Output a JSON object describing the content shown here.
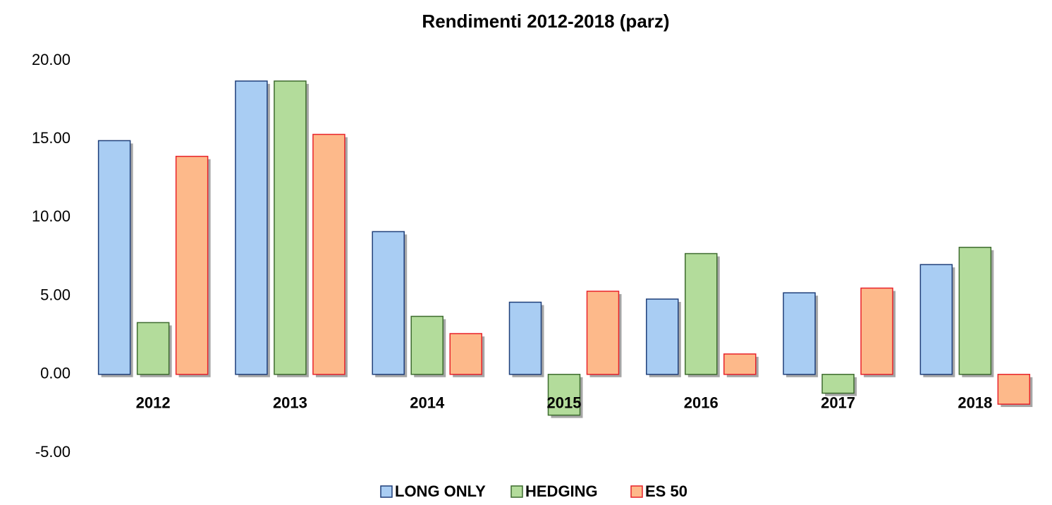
{
  "chart_data": {
    "type": "bar",
    "title": "Rendimenti 2012-2018 (parz)",
    "categories": [
      "2012",
      "2013",
      "2014",
      "2015",
      "2016",
      "2017",
      "2018"
    ],
    "series": [
      {
        "name": "LONG ONLY",
        "color": "#a9cdf3",
        "values": [
          14.9,
          18.7,
          9.1,
          4.6,
          4.8,
          5.2,
          7.0
        ]
      },
      {
        "name": "HEDGING",
        "color": "#b3dc9b",
        "values": [
          3.3,
          18.7,
          3.7,
          -2.6,
          7.7,
          -1.2,
          8.1
        ]
      },
      {
        "name": "ES 50",
        "color": "#fdb98a",
        "values": [
          13.9,
          15.3,
          2.6,
          5.3,
          1.3,
          5.5,
          -1.9
        ]
      }
    ],
    "ylim": [
      -5,
      20
    ],
    "yticks": [
      {
        "value": -5,
        "label": "-5.00"
      },
      {
        "value": 0,
        "label": "0.00"
      },
      {
        "value": 5,
        "label": "5.00"
      },
      {
        "value": 10,
        "label": "10.00"
      },
      {
        "value": 15,
        "label": "15.00"
      },
      {
        "value": 20,
        "label": "20.00"
      }
    ],
    "legend": "bottom"
  }
}
